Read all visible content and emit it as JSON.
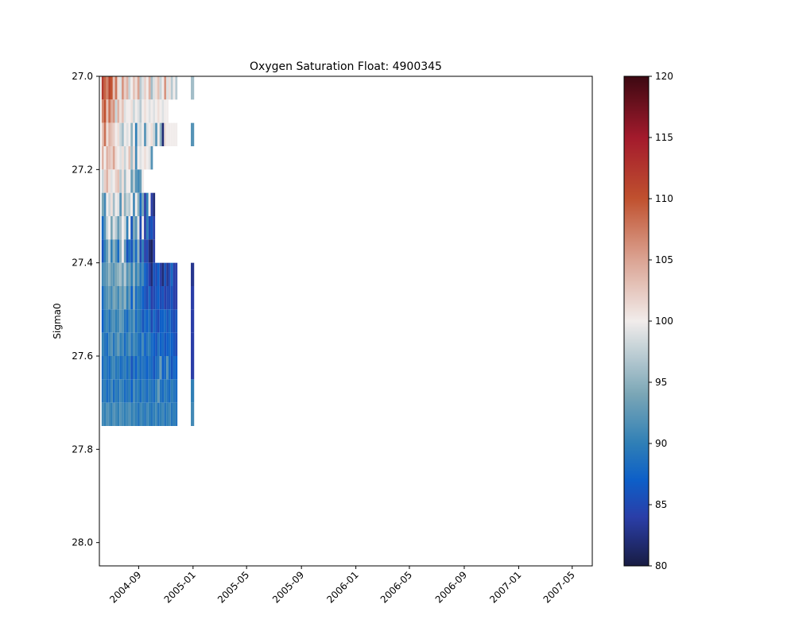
{
  "chart_data": {
    "type": "heatmap",
    "title": "Oxygen Saturation Float: 4900345",
    "xlabel": "",
    "ylabel": "Sigma0",
    "x_axis": {
      "kind": "date",
      "range": [
        "2004-06-05",
        "2007-06-15"
      ],
      "ticks": [
        "2004-09-01",
        "2005-01-01",
        "2005-05-01",
        "2005-09-01",
        "2006-01-01",
        "2006-05-01",
        "2006-09-01",
        "2007-01-01",
        "2007-05-01"
      ],
      "tick_labels": [
        "2004-09",
        "2005-01",
        "2005-05",
        "2005-09",
        "2006-01",
        "2006-05",
        "2006-09",
        "2007-01",
        "2007-05"
      ]
    },
    "y_axis": {
      "range": [
        27.0,
        28.05
      ],
      "inverted": true,
      "ticks": [
        27.0,
        27.2,
        27.4,
        27.6,
        27.8,
        28.0
      ],
      "tick_labels": [
        "27.0",
        "27.2",
        "27.4",
        "27.6",
        "27.8",
        "28.0"
      ]
    },
    "colorbar": {
      "range": [
        80,
        120
      ],
      "ticks": [
        80,
        85,
        90,
        95,
        100,
        105,
        110,
        115,
        120
      ],
      "tick_labels": [
        "80",
        "85",
        "90",
        "95",
        "100",
        "105",
        "110",
        "115",
        "120"
      ],
      "colormap": "balance",
      "stops": [
        {
          "value": 80,
          "color": "#181c43"
        },
        {
          "value": 84,
          "color": "#2a3ea8"
        },
        {
          "value": 87,
          "color": "#0d5fc8"
        },
        {
          "value": 90,
          "color": "#2f7fb6"
        },
        {
          "value": 94,
          "color": "#7aa6b6"
        },
        {
          "value": 100,
          "color": "#f1eceb"
        },
        {
          "value": 105,
          "color": "#dba493"
        },
        {
          "value": 110,
          "color": "#c0512f"
        },
        {
          "value": 115,
          "color": "#a31a2c"
        },
        {
          "value": 120,
          "color": "#3c0912"
        }
      ]
    },
    "grid": false,
    "sigma_bins": [
      27.0,
      27.05,
      27.1,
      27.15,
      27.2,
      27.25,
      27.3,
      27.35,
      27.4,
      27.45,
      27.5,
      27.55,
      27.6,
      27.65,
      27.7,
      27.75
    ],
    "profile_dates": [
      "2004-06-10",
      "2004-06-15",
      "2004-06-20",
      "2004-06-25",
      "2004-06-30",
      "2004-07-05",
      "2004-07-10",
      "2004-07-15",
      "2004-07-20",
      "2004-07-25",
      "2004-07-30",
      "2004-08-04",
      "2004-08-09",
      "2004-08-14",
      "2004-08-19",
      "2004-08-24",
      "2004-08-29",
      "2004-09-03",
      "2004-09-08",
      "2004-09-13",
      "2004-09-18",
      "2004-09-23",
      "2004-09-28",
      "2004-10-03",
      "2004-10-08",
      "2004-10-13",
      "2004-10-18",
      "2004-10-23",
      "2004-10-28",
      "2004-11-02",
      "2004-11-07",
      "2004-11-12",
      "2004-11-17",
      "2004-11-22",
      "2004-12-27"
    ],
    "bin_profiles": [
      {
        "sigma": 27.0,
        "values": [
          112,
          109,
          107,
          111,
          110,
          103,
          108,
          101,
          99,
          106,
          102,
          104,
          98,
          100,
          103,
          101,
          105,
          97,
          99,
          102,
          100,
          104,
          96,
          99,
          101,
          103,
          98,
          100,
          106,
          99,
          101,
          97,
          100,
          97,
          96
        ]
      },
      {
        "sigma": 27.05,
        "values": [
          107,
          110,
          103,
          108,
          105,
          106,
          98,
          104,
          101,
          103,
          99,
          100,
          100,
          101,
          98,
          100,
          99,
          97,
          100,
          101,
          100,
          99,
          100,
          99,
          100,
          101,
          100,
          99,
          100,
          100,
          null,
          null,
          null,
          null,
          null
        ]
      },
      {
        "sigma": 27.1,
        "values": [
          103,
          108,
          101,
          104,
          103,
          102,
          100,
          101,
          98,
          96,
          100,
          99,
          100,
          95,
          100,
          90,
          99,
          98,
          100,
          92,
          99,
          100,
          101,
          98,
          92,
          100,
          95,
          82,
          101,
          100,
          100,
          100,
          100,
          100,
          92
        ]
      },
      {
        "sigma": 27.15,
        "values": [
          104,
          100,
          104,
          103,
          102,
          105,
          101,
          100,
          99,
          101,
          98,
          100,
          103,
          96,
          101,
          91,
          100,
          99,
          100,
          101,
          100,
          99,
          92,
          null,
          null,
          null,
          null,
          null,
          null,
          null,
          null,
          null,
          null,
          null,
          null
        ]
      },
      {
        "sigma": 27.2,
        "values": [
          98,
          102,
          104,
          101,
          99,
          100,
          102,
          103,
          97,
          101,
          96,
          100,
          100,
          93,
          97,
          92,
          91,
          93,
          100,
          null,
          null,
          null,
          null,
          null,
          null,
          null,
          null,
          null,
          null,
          null,
          null,
          null,
          null,
          null,
          null
        ]
      },
      {
        "sigma": 27.25,
        "values": [
          94,
          91,
          100,
          98,
          101,
          96,
          100,
          99,
          92,
          101,
          95,
          98,
          97,
          100,
          91,
          100,
          95,
          88,
          94,
          84,
          90,
          100,
          84,
          82,
          null,
          null,
          null,
          null,
          null,
          null,
          null,
          null,
          null,
          null,
          null
        ]
      },
      {
        "sigma": 27.3,
        "values": [
          88,
          92,
          98,
          100,
          94,
          99,
          97,
          93,
          96,
          100,
          98,
          90,
          100,
          86,
          94,
          92,
          99,
          85,
          100,
          84,
          90,
          85,
          86,
          84,
          null,
          null,
          null,
          null,
          null,
          null,
          null,
          null,
          null,
          null,
          null
        ]
      },
      {
        "sigma": 27.35,
        "values": [
          86,
          90,
          93,
          97,
          90,
          95,
          92,
          88,
          95,
          100,
          93,
          86,
          89,
          86,
          92,
          88,
          95,
          85,
          90,
          84,
          85,
          82,
          81,
          84,
          null,
          null,
          null,
          null,
          null,
          null,
          null,
          null,
          null,
          null,
          null
        ]
      },
      {
        "sigma": 27.4,
        "values": [
          91,
          92,
          93,
          95,
          93,
          92,
          94,
          95,
          96,
          93,
          97,
          92,
          94,
          90,
          95,
          90,
          93,
          89,
          91,
          87,
          86,
          84,
          82,
          86,
          85,
          87,
          84,
          82,
          86,
          83,
          85,
          88,
          84,
          84,
          83
        ]
      },
      {
        "sigma": 27.45,
        "values": [
          88,
          91,
          92,
          93,
          91,
          94,
          93,
          91,
          94,
          92,
          95,
          90,
          93,
          87,
          94,
          88,
          90,
          89,
          87,
          86,
          85,
          88,
          84,
          85,
          86,
          87,
          85,
          86,
          84,
          85,
          85,
          86,
          84,
          84,
          84
        ]
      },
      {
        "sigma": 27.5,
        "values": [
          87,
          90,
          91,
          89,
          91,
          92,
          90,
          91,
          93,
          92,
          89,
          88,
          91,
          90,
          92,
          88,
          90,
          89,
          86,
          88,
          87,
          89,
          85,
          88,
          86,
          85,
          87,
          87,
          88,
          86,
          88,
          86,
          85,
          86,
          84
        ]
      },
      {
        "sigma": 27.55,
        "values": [
          90,
          89,
          88,
          91,
          92,
          89,
          91,
          93,
          90,
          91,
          88,
          90,
          92,
          89,
          91,
          90,
          89,
          88,
          91,
          87,
          89,
          90,
          88,
          87,
          86,
          89,
          87,
          88,
          86,
          87,
          88,
          87,
          86,
          85,
          84
        ]
      },
      {
        "sigma": 27.6,
        "values": [
          88,
          90,
          89,
          88,
          90,
          91,
          89,
          90,
          88,
          89,
          90,
          88,
          90,
          86,
          89,
          87,
          90,
          88,
          89,
          88,
          87,
          89,
          88,
          86,
          88,
          89,
          93,
          87,
          88,
          92,
          88,
          86,
          88,
          87,
          84
        ]
      },
      {
        "sigma": 27.65,
        "values": [
          89,
          90,
          88,
          89,
          91,
          88,
          90,
          89,
          91,
          90,
          88,
          89,
          90,
          87,
          91,
          89,
          90,
          88,
          90,
          89,
          88,
          90,
          89,
          88,
          90,
          93,
          89,
          88,
          90,
          89,
          88,
          90,
          89,
          88,
          90
        ]
      },
      {
        "sigma": 27.7,
        "values": [
          91,
          90,
          92,
          91,
          90,
          92,
          91,
          90,
          92,
          91,
          90,
          91,
          92,
          90,
          91,
          90,
          89,
          91,
          90,
          89,
          91,
          90,
          89,
          90,
          91,
          89,
          90,
          91,
          89,
          90,
          91,
          89,
          90,
          89,
          91
        ]
      }
    ]
  }
}
